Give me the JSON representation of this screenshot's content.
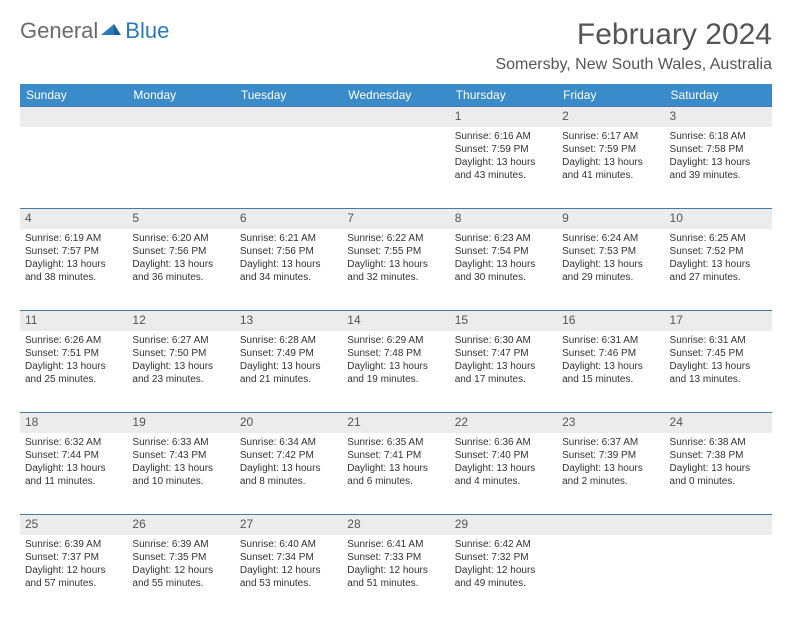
{
  "logo": {
    "part1": "General",
    "part2": "Blue"
  },
  "title": "February 2024",
  "location": "Somersby, New South Wales, Australia",
  "theme": {
    "header_bg": "#3a8bc9",
    "header_fg": "#ffffff",
    "daynum_bg": "#ececec",
    "row_border": "#4a78a4",
    "text_color": "#333333",
    "title_color": "#555555",
    "logo_gray": "#6a6a6a",
    "logo_blue": "#2a7ab8"
  },
  "day_headers": [
    "Sunday",
    "Monday",
    "Tuesday",
    "Wednesday",
    "Thursday",
    "Friday",
    "Saturday"
  ],
  "weeks": [
    {
      "nums": [
        "",
        "",
        "",
        "",
        "1",
        "2",
        "3"
      ],
      "cells": [
        {
          "lines": []
        },
        {
          "lines": []
        },
        {
          "lines": []
        },
        {
          "lines": []
        },
        {
          "lines": [
            "Sunrise: 6:16 AM",
            "Sunset: 7:59 PM",
            "Daylight: 13 hours and 43 minutes."
          ]
        },
        {
          "lines": [
            "Sunrise: 6:17 AM",
            "Sunset: 7:59 PM",
            "Daylight: 13 hours and 41 minutes."
          ]
        },
        {
          "lines": [
            "Sunrise: 6:18 AM",
            "Sunset: 7:58 PM",
            "Daylight: 13 hours and 39 minutes."
          ]
        }
      ]
    },
    {
      "nums": [
        "4",
        "5",
        "6",
        "7",
        "8",
        "9",
        "10"
      ],
      "cells": [
        {
          "lines": [
            "Sunrise: 6:19 AM",
            "Sunset: 7:57 PM",
            "Daylight: 13 hours and 38 minutes."
          ]
        },
        {
          "lines": [
            "Sunrise: 6:20 AM",
            "Sunset: 7:56 PM",
            "Daylight: 13 hours and 36 minutes."
          ]
        },
        {
          "lines": [
            "Sunrise: 6:21 AM",
            "Sunset: 7:56 PM",
            "Daylight: 13 hours and 34 minutes."
          ]
        },
        {
          "lines": [
            "Sunrise: 6:22 AM",
            "Sunset: 7:55 PM",
            "Daylight: 13 hours and 32 minutes."
          ]
        },
        {
          "lines": [
            "Sunrise: 6:23 AM",
            "Sunset: 7:54 PM",
            "Daylight: 13 hours and 30 minutes."
          ]
        },
        {
          "lines": [
            "Sunrise: 6:24 AM",
            "Sunset: 7:53 PM",
            "Daylight: 13 hours and 29 minutes."
          ]
        },
        {
          "lines": [
            "Sunrise: 6:25 AM",
            "Sunset: 7:52 PM",
            "Daylight: 13 hours and 27 minutes."
          ]
        }
      ]
    },
    {
      "nums": [
        "11",
        "12",
        "13",
        "14",
        "15",
        "16",
        "17"
      ],
      "cells": [
        {
          "lines": [
            "Sunrise: 6:26 AM",
            "Sunset: 7:51 PM",
            "Daylight: 13 hours and 25 minutes."
          ]
        },
        {
          "lines": [
            "Sunrise: 6:27 AM",
            "Sunset: 7:50 PM",
            "Daylight: 13 hours and 23 minutes."
          ]
        },
        {
          "lines": [
            "Sunrise: 6:28 AM",
            "Sunset: 7:49 PM",
            "Daylight: 13 hours and 21 minutes."
          ]
        },
        {
          "lines": [
            "Sunrise: 6:29 AM",
            "Sunset: 7:48 PM",
            "Daylight: 13 hours and 19 minutes."
          ]
        },
        {
          "lines": [
            "Sunrise: 6:30 AM",
            "Sunset: 7:47 PM",
            "Daylight: 13 hours and 17 minutes."
          ]
        },
        {
          "lines": [
            "Sunrise: 6:31 AM",
            "Sunset: 7:46 PM",
            "Daylight: 13 hours and 15 minutes."
          ]
        },
        {
          "lines": [
            "Sunrise: 6:31 AM",
            "Sunset: 7:45 PM",
            "Daylight: 13 hours and 13 minutes."
          ]
        }
      ]
    },
    {
      "nums": [
        "18",
        "19",
        "20",
        "21",
        "22",
        "23",
        "24"
      ],
      "cells": [
        {
          "lines": [
            "Sunrise: 6:32 AM",
            "Sunset: 7:44 PM",
            "Daylight: 13 hours and 11 minutes."
          ]
        },
        {
          "lines": [
            "Sunrise: 6:33 AM",
            "Sunset: 7:43 PM",
            "Daylight: 13 hours and 10 minutes."
          ]
        },
        {
          "lines": [
            "Sunrise: 6:34 AM",
            "Sunset: 7:42 PM",
            "Daylight: 13 hours and 8 minutes."
          ]
        },
        {
          "lines": [
            "Sunrise: 6:35 AM",
            "Sunset: 7:41 PM",
            "Daylight: 13 hours and 6 minutes."
          ]
        },
        {
          "lines": [
            "Sunrise: 6:36 AM",
            "Sunset: 7:40 PM",
            "Daylight: 13 hours and 4 minutes."
          ]
        },
        {
          "lines": [
            "Sunrise: 6:37 AM",
            "Sunset: 7:39 PM",
            "Daylight: 13 hours and 2 minutes."
          ]
        },
        {
          "lines": [
            "Sunrise: 6:38 AM",
            "Sunset: 7:38 PM",
            "Daylight: 13 hours and 0 minutes."
          ]
        }
      ]
    },
    {
      "nums": [
        "25",
        "26",
        "27",
        "28",
        "29",
        "",
        ""
      ],
      "cells": [
        {
          "lines": [
            "Sunrise: 6:39 AM",
            "Sunset: 7:37 PM",
            "Daylight: 12 hours and 57 minutes."
          ]
        },
        {
          "lines": [
            "Sunrise: 6:39 AM",
            "Sunset: 7:35 PM",
            "Daylight: 12 hours and 55 minutes."
          ]
        },
        {
          "lines": [
            "Sunrise: 6:40 AM",
            "Sunset: 7:34 PM",
            "Daylight: 12 hours and 53 minutes."
          ]
        },
        {
          "lines": [
            "Sunrise: 6:41 AM",
            "Sunset: 7:33 PM",
            "Daylight: 12 hours and 51 minutes."
          ]
        },
        {
          "lines": [
            "Sunrise: 6:42 AM",
            "Sunset: 7:32 PM",
            "Daylight: 12 hours and 49 minutes."
          ]
        },
        {
          "lines": []
        },
        {
          "lines": []
        }
      ]
    }
  ]
}
